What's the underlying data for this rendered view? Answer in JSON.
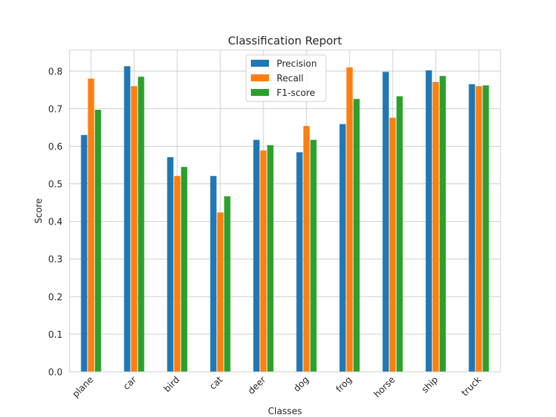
{
  "chart_data": {
    "type": "bar",
    "title": "Classification Report",
    "xlabel": "Classes",
    "ylabel": "Score",
    "ylim": [
      0,
      0.856
    ],
    "yticks": [
      0.0,
      0.1,
      0.2,
      0.3,
      0.4,
      0.5,
      0.6,
      0.7,
      0.8
    ],
    "ytick_labels": [
      "0.0",
      "0.1",
      "0.2",
      "0.3",
      "0.4",
      "0.5",
      "0.6",
      "0.7",
      "0.8"
    ],
    "grid": true,
    "legend_position": "top-center",
    "categories": [
      "plane",
      "car",
      "bird",
      "cat",
      "deer",
      "dog",
      "frog",
      "horse",
      "ship",
      "truck"
    ],
    "series": [
      {
        "name": "Precision",
        "color": "#1f77b4",
        "values": [
          0.63,
          0.813,
          0.571,
          0.521,
          0.617,
          0.584,
          0.659,
          0.798,
          0.802,
          0.765
        ]
      },
      {
        "name": "Recall",
        "color": "#ff7f0e",
        "values": [
          0.78,
          0.76,
          0.521,
          0.424,
          0.589,
          0.654,
          0.81,
          0.676,
          0.771,
          0.76
        ]
      },
      {
        "name": "F1-score",
        "color": "#2ca02c",
        "values": [
          0.697,
          0.785,
          0.545,
          0.467,
          0.603,
          0.617,
          0.726,
          0.733,
          0.787,
          0.762
        ]
      }
    ]
  }
}
